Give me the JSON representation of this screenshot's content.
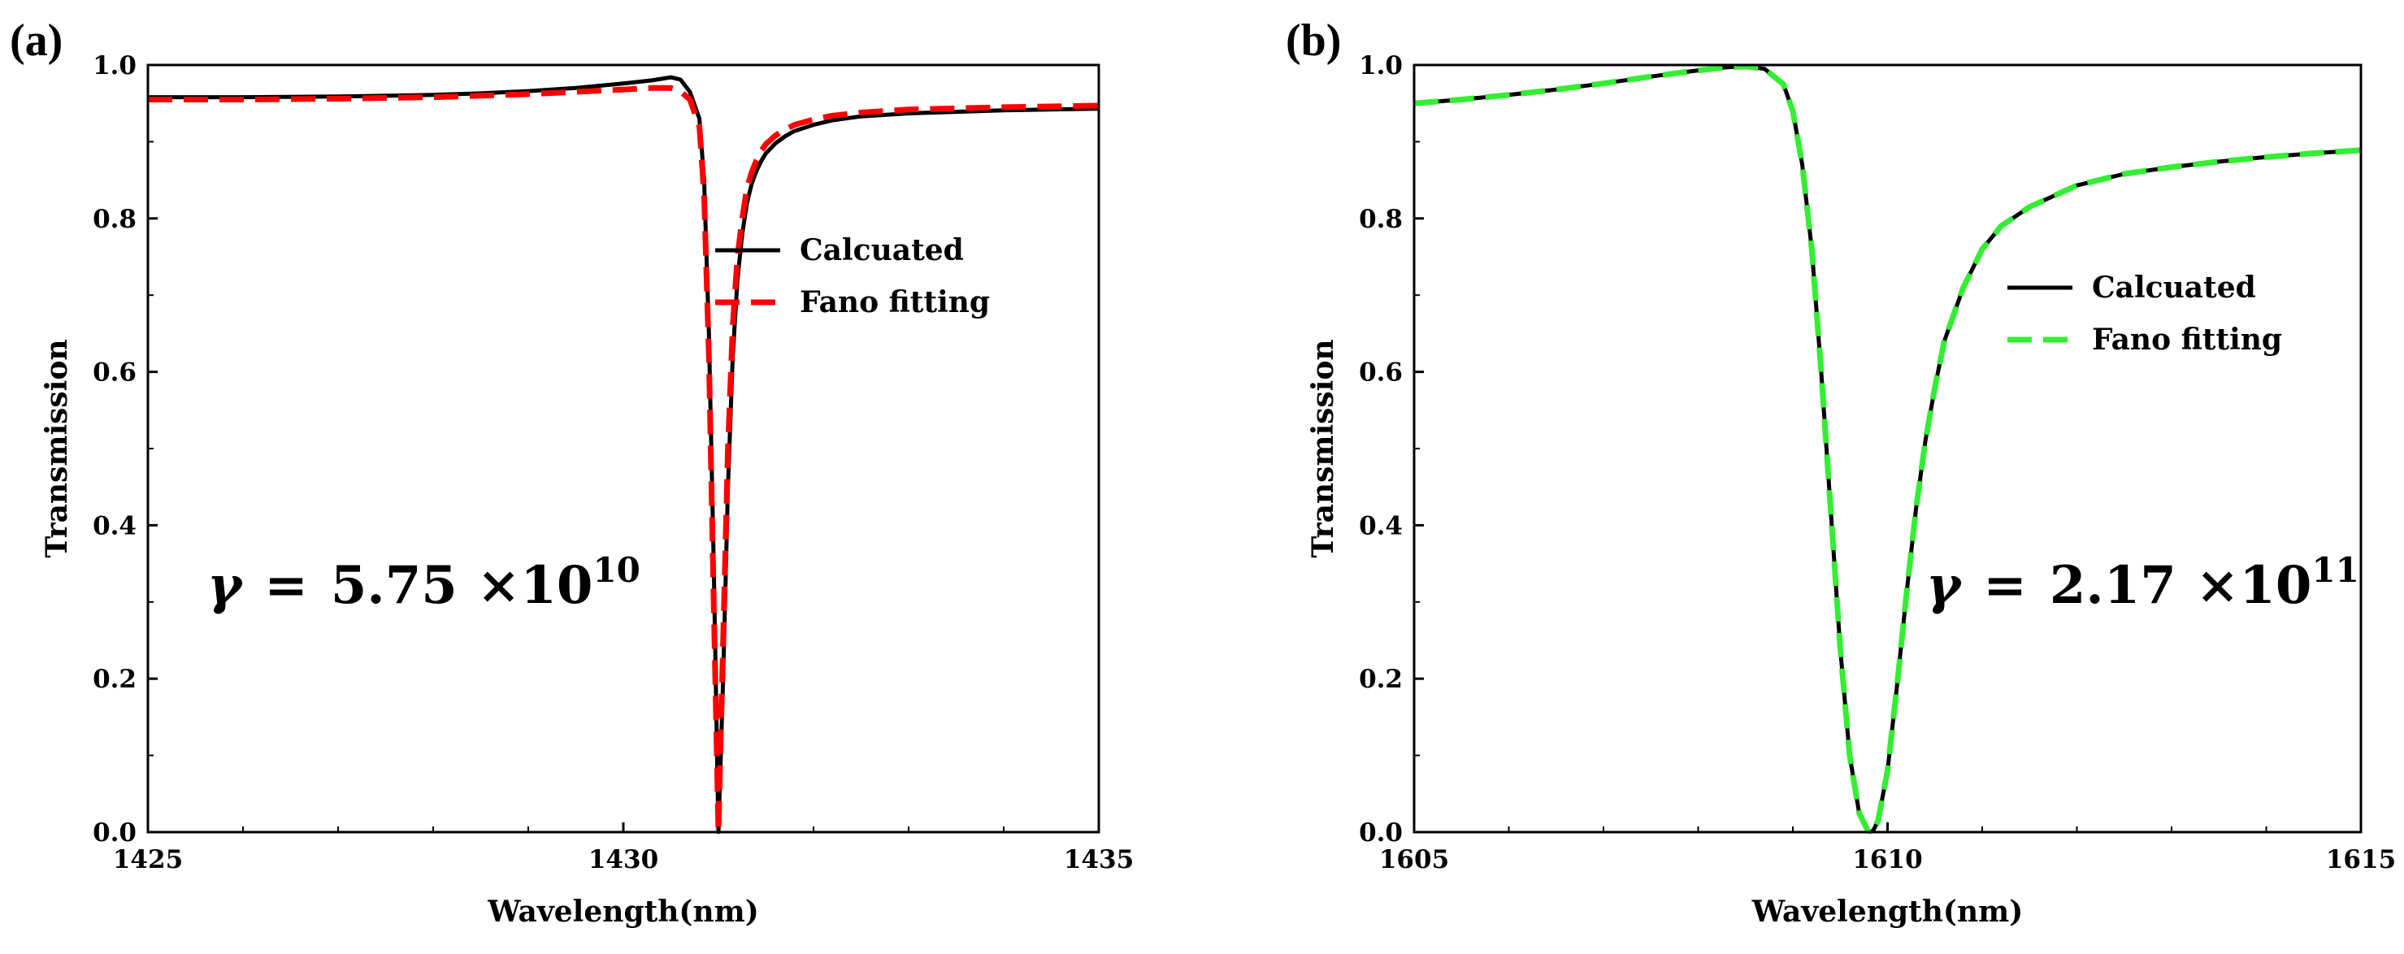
{
  "figure": {
    "background": "#ffffff"
  },
  "chart_data": [
    {
      "type": "line",
      "panel_label": "(a)",
      "xlabel": "Wavelength(nm)",
      "ylabel": "Transmission",
      "xlim": [
        1425,
        1435
      ],
      "ylim": [
        0.0,
        1.0
      ],
      "x_ticks": [
        1425,
        1430,
        1435
      ],
      "x_tick_labels": [
        "1425",
        "1430",
        "1435"
      ],
      "y_ticks": [
        0.0,
        0.2,
        0.4,
        0.6,
        0.8,
        1.0
      ],
      "y_tick_labels": [
        "0.0",
        "0.2",
        "0.4",
        "0.6",
        "0.8",
        "1.0"
      ],
      "legend_position": "right",
      "annotation": {
        "gamma_symbol": "γ",
        "equals": "=",
        "value": "5.75",
        "times": "×10",
        "exponent": "10"
      },
      "series": [
        {
          "name": "Calcuated",
          "color": "#000000",
          "style": "solid",
          "x": [
            1425,
            1426,
            1427,
            1428,
            1428.5,
            1429,
            1429.5,
            1430,
            1430.3,
            1430.5,
            1430.6,
            1430.7,
            1430.8,
            1430.85,
            1430.9,
            1430.95,
            1431.0,
            1431.05,
            1431.1,
            1431.15,
            1431.2,
            1431.25,
            1431.3,
            1431.35,
            1431.4,
            1431.45,
            1431.5,
            1431.6,
            1431.7,
            1431.8,
            1432.0,
            1432.2,
            1432.5,
            1433.0,
            1434.0,
            1435.0
          ],
          "y": [
            0.958,
            0.958,
            0.959,
            0.961,
            0.963,
            0.966,
            0.97,
            0.976,
            0.98,
            0.984,
            0.981,
            0.965,
            0.93,
            0.85,
            0.65,
            0.35,
            0.0,
            0.2,
            0.45,
            0.62,
            0.72,
            0.78,
            0.82,
            0.845,
            0.862,
            0.875,
            0.885,
            0.898,
            0.907,
            0.914,
            0.922,
            0.928,
            0.933,
            0.937,
            0.941,
            0.943
          ]
        },
        {
          "name": "Fano fitting",
          "color": "#ff0000",
          "style": "dashed",
          "x": [
            1425,
            1426,
            1427,
            1428,
            1428.5,
            1429,
            1429.5,
            1430,
            1430.3,
            1430.5,
            1430.6,
            1430.7,
            1430.8,
            1430.85,
            1430.9,
            1430.95,
            1431.0,
            1431.05,
            1431.1,
            1431.15,
            1431.2,
            1431.25,
            1431.3,
            1431.35,
            1431.4,
            1431.45,
            1431.5,
            1431.6,
            1431.7,
            1431.8,
            1432.0,
            1432.2,
            1432.5,
            1433.0,
            1434.0,
            1435.0
          ],
          "y": [
            0.955,
            0.955,
            0.956,
            0.958,
            0.96,
            0.962,
            0.965,
            0.968,
            0.97,
            0.97,
            0.966,
            0.955,
            0.92,
            0.83,
            0.62,
            0.3,
            0.0,
            0.25,
            0.5,
            0.66,
            0.75,
            0.8,
            0.84,
            0.86,
            0.876,
            0.888,
            0.897,
            0.908,
            0.916,
            0.922,
            0.929,
            0.934,
            0.938,
            0.942,
            0.945,
            0.947
          ]
        }
      ]
    },
    {
      "type": "line",
      "panel_label": "(b)",
      "xlabel": "Wavelength(nm)",
      "ylabel": "Transmission",
      "xlim": [
        1605,
        1615
      ],
      "ylim": [
        0.0,
        1.0
      ],
      "x_ticks": [
        1605,
        1610,
        1615
      ],
      "x_tick_labels": [
        "1605",
        "1610",
        "1615"
      ],
      "y_ticks": [
        0.0,
        0.2,
        0.4,
        0.6,
        0.8,
        1.0
      ],
      "y_tick_labels": [
        "0.0",
        "0.2",
        "0.4",
        "0.6",
        "0.8",
        "1.0"
      ],
      "legend_position": "right",
      "annotation": {
        "gamma_symbol": "γ",
        "equals": "=",
        "value": "2.17",
        "times": "×10",
        "exponent": "11"
      },
      "series": [
        {
          "name": "Calcuated",
          "color": "#000000",
          "style": "solid",
          "x": [
            1605,
            1605.5,
            1606,
            1606.5,
            1607,
            1607.5,
            1608,
            1608.3,
            1608.5,
            1608.7,
            1608.9,
            1609.0,
            1609.1,
            1609.2,
            1609.3,
            1609.4,
            1609.5,
            1609.6,
            1609.7,
            1609.8,
            1609.85,
            1609.9,
            1610.0,
            1610.1,
            1610.2,
            1610.3,
            1610.4,
            1610.5,
            1610.6,
            1610.8,
            1611.0,
            1611.2,
            1611.5,
            1612.0,
            1612.5,
            1613.0,
            1613.5,
            1614.0,
            1614.5,
            1615.0
          ],
          "y": [
            0.95,
            0.955,
            0.961,
            0.968,
            0.976,
            0.985,
            0.993,
            0.997,
            0.998,
            0.995,
            0.975,
            0.94,
            0.87,
            0.76,
            0.6,
            0.42,
            0.24,
            0.1,
            0.025,
            0.0,
            0.002,
            0.015,
            0.08,
            0.19,
            0.31,
            0.42,
            0.51,
            0.58,
            0.64,
            0.71,
            0.76,
            0.79,
            0.815,
            0.843,
            0.858,
            0.867,
            0.874,
            0.88,
            0.885,
            0.889
          ]
        },
        {
          "name": "Fano fitting",
          "color": "#33ee33",
          "style": "dashed",
          "x": [
            1605,
            1605.5,
            1606,
            1606.5,
            1607,
            1607.5,
            1608,
            1608.3,
            1608.5,
            1608.7,
            1608.9,
            1609.0,
            1609.1,
            1609.2,
            1609.3,
            1609.4,
            1609.5,
            1609.6,
            1609.7,
            1609.8,
            1609.85,
            1609.9,
            1610.0,
            1610.1,
            1610.2,
            1610.3,
            1610.4,
            1610.5,
            1610.6,
            1610.8,
            1611.0,
            1611.2,
            1611.5,
            1612.0,
            1612.5,
            1613.0,
            1613.5,
            1614.0,
            1614.5,
            1615.0
          ],
          "y": [
            0.95,
            0.955,
            0.961,
            0.968,
            0.976,
            0.985,
            0.993,
            0.997,
            0.998,
            0.995,
            0.975,
            0.94,
            0.87,
            0.76,
            0.6,
            0.42,
            0.24,
            0.1,
            0.025,
            0.0,
            0.002,
            0.015,
            0.08,
            0.19,
            0.31,
            0.42,
            0.51,
            0.58,
            0.64,
            0.71,
            0.76,
            0.79,
            0.815,
            0.843,
            0.858,
            0.867,
            0.874,
            0.88,
            0.885,
            0.889
          ]
        }
      ]
    }
  ]
}
